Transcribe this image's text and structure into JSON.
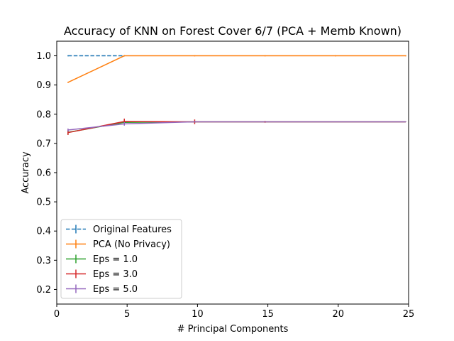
{
  "chart_data": {
    "type": "line",
    "title": "Accuracy of KNN on Forest Cover 6/7 (PCA + Memb Known)",
    "xlabel": "# Principal Components",
    "ylabel": "Accuracy",
    "xlim": [
      0,
      25
    ],
    "ylim": [
      0.15,
      1.05
    ],
    "xticks": [
      0,
      5,
      10,
      15,
      20,
      25
    ],
    "yticks": [
      0.2,
      0.3,
      0.4,
      0.5,
      0.6,
      0.7,
      0.8,
      0.9,
      1.0
    ],
    "xtick_labels": [
      "0",
      "5",
      "10",
      "15",
      "20",
      "25"
    ],
    "ytick_labels": [
      "0.2",
      "0.3",
      "0.4",
      "0.5",
      "0.6",
      "0.7",
      "0.8",
      "0.9",
      "1.0"
    ],
    "grid": false,
    "legend_position": "lower-left",
    "series": [
      {
        "name": "Original Features",
        "color": "#1f77b4",
        "dashed": true,
        "x": [
          0.8,
          4.8
        ],
        "y": [
          1.0,
          1.0
        ],
        "err": [
          0,
          0
        ]
      },
      {
        "name": "PCA (No Privacy)",
        "color": "#ff7f0e",
        "dashed": false,
        "x": [
          0.8,
          4.8,
          9.8,
          14.8,
          19.8,
          24.8
        ],
        "y": [
          0.909,
          1.0,
          1.0,
          1.0,
          1.0,
          1.0
        ],
        "err": [
          0,
          0,
          0,
          0,
          0,
          0
        ]
      },
      {
        "name": "Eps = 1.0",
        "color": "#2ca02c",
        "dashed": false,
        "x": [
          0.8,
          4.8,
          9.8,
          14.8,
          19.8,
          24.8
        ],
        "y": [
          0.738,
          0.772,
          0.774,
          0.774,
          0.774,
          0.774
        ],
        "err": [
          0.008,
          0.006,
          0.003,
          0.002,
          0.001,
          0.001
        ]
      },
      {
        "name": "Eps = 3.0",
        "color": "#d62728",
        "dashed": false,
        "x": [
          0.8,
          4.8,
          9.8,
          14.8,
          19.8,
          24.8
        ],
        "y": [
          0.737,
          0.775,
          0.774,
          0.774,
          0.774,
          0.774
        ],
        "err": [
          0.008,
          0.01,
          0.008,
          0.003,
          0.001,
          0.001
        ]
      },
      {
        "name": "Eps = 5.0",
        "color": "#9467bd",
        "dashed": false,
        "x": [
          0.8,
          4.8,
          9.8,
          14.8,
          19.8,
          24.8
        ],
        "y": [
          0.746,
          0.767,
          0.774,
          0.774,
          0.774,
          0.774
        ],
        "err": [
          0.005,
          0.006,
          0.002,
          0.001,
          0.001,
          0.001
        ]
      }
    ]
  }
}
